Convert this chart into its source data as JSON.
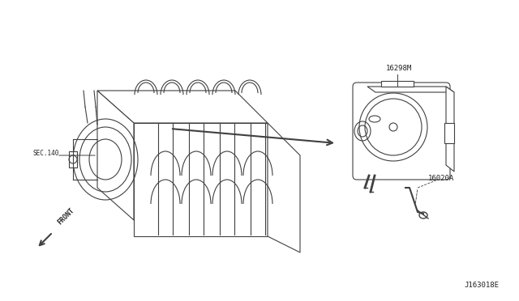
{
  "bg_color": "#ffffff",
  "line_color": "#404040",
  "text_color": "#222222",
  "title_text": "",
  "labels": {
    "sec140": "SEC.140",
    "part1": "16298M",
    "part2": "16020A",
    "diagram_id": "J163018E",
    "front": "FRONT"
  },
  "figsize": [
    6.4,
    3.72
  ],
  "dpi": 100
}
